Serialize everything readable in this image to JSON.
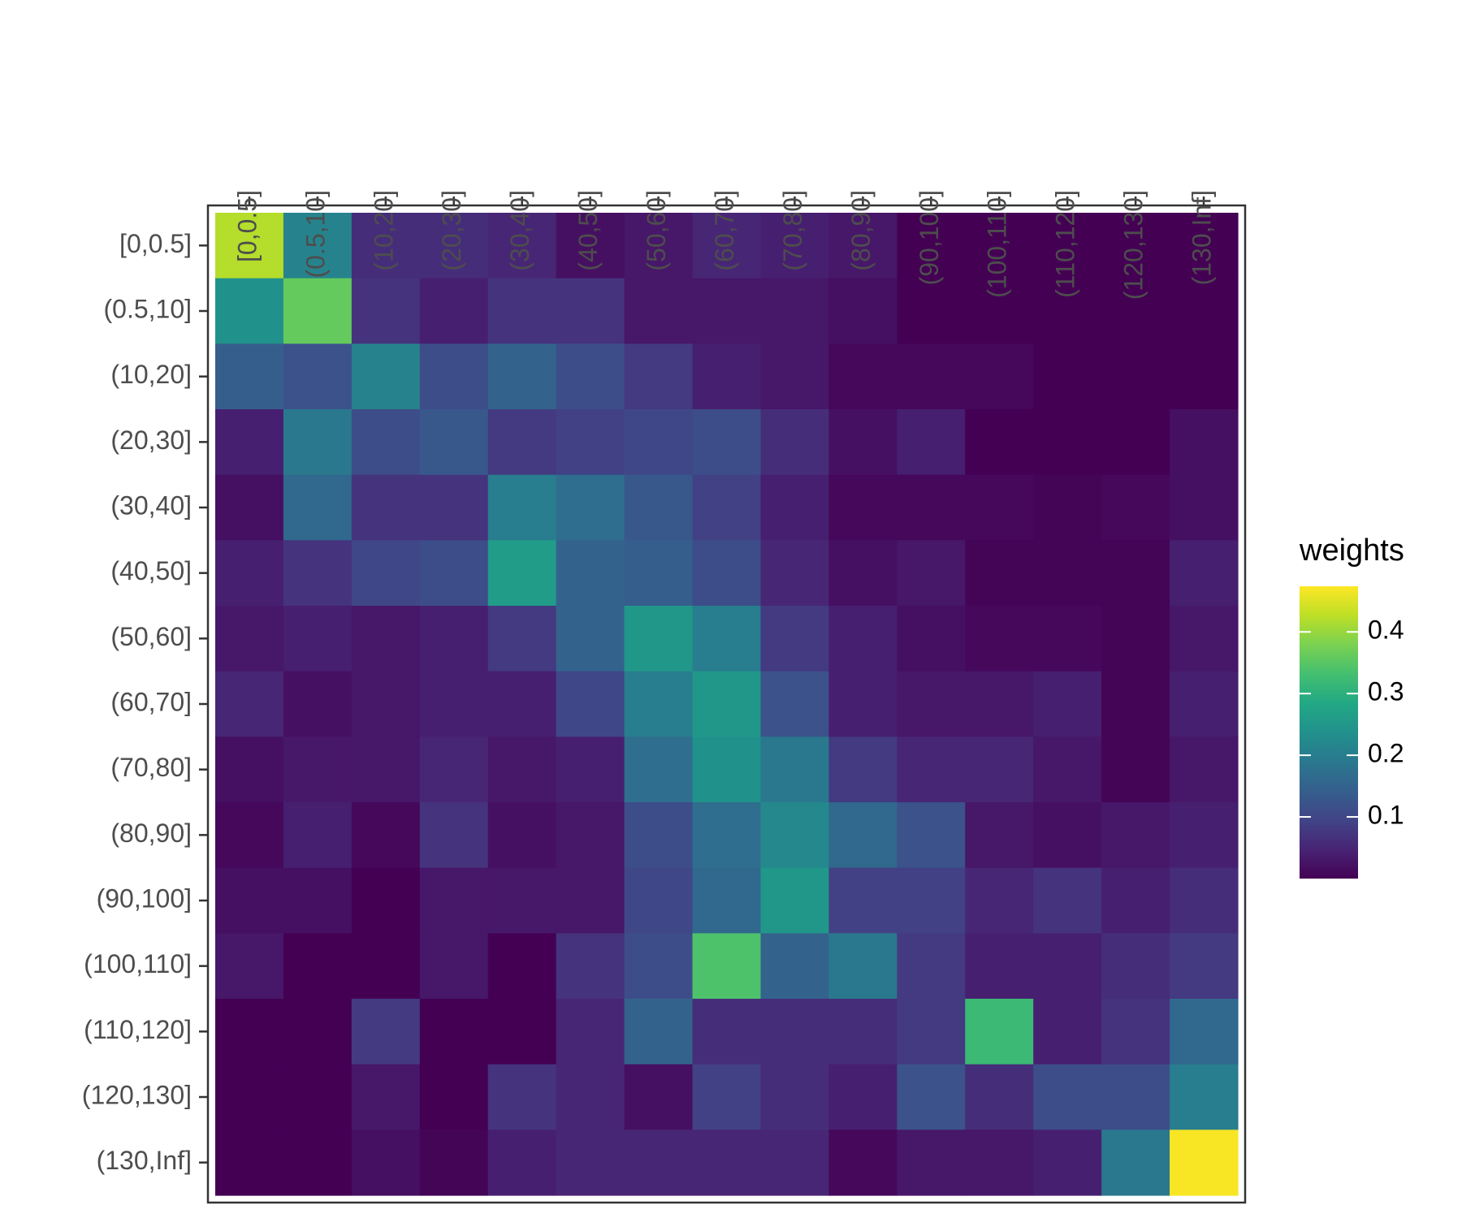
{
  "chart_data": {
    "type": "heatmap",
    "x_categories": [
      "[0,0.5]",
      "(0.5,10]",
      "(10,20]",
      "(20,30]",
      "(30,40]",
      "(40,50]",
      "(50,60]",
      "(60,70]",
      "(70,80]",
      "(80,90]",
      "(90,100]",
      "(100,110]",
      "(110,120]",
      "(120,130]",
      "(130,Inf]"
    ],
    "y_categories": [
      "[0,0.5]",
      "(0.5,10]",
      "(10,20]",
      "(20,30]",
      "(30,40]",
      "(40,50]",
      "(50,60]",
      "(60,70]",
      "(70,80]",
      "(80,90]",
      "(90,100]",
      "(100,110]",
      "(110,120]",
      "(120,130]",
      "(130,Inf]"
    ],
    "values": [
      [
        0.42,
        0.21,
        0.06,
        0.06,
        0.05,
        0.02,
        0.03,
        0.05,
        0.04,
        0.03,
        0,
        0,
        0,
        0,
        0
      ],
      [
        0.24,
        0.36,
        0.07,
        0.04,
        0.07,
        0.07,
        0.03,
        0.03,
        0.03,
        0.02,
        0,
        0,
        0,
        0,
        0
      ],
      [
        0.14,
        0.12,
        0.21,
        0.11,
        0.15,
        0.11,
        0.08,
        0.04,
        0.03,
        0.01,
        0.01,
        0.01,
        0,
        0,
        0
      ],
      [
        0.04,
        0.19,
        0.11,
        0.13,
        0.08,
        0.09,
        0.1,
        0.11,
        0.06,
        0.02,
        0.04,
        0,
        0,
        0,
        0.02
      ],
      [
        0.02,
        0.16,
        0.07,
        0.07,
        0.2,
        0.17,
        0.13,
        0.09,
        0.04,
        0.01,
        0.01,
        0.01,
        0.005,
        0.01,
        0.02
      ],
      [
        0.04,
        0.07,
        0.1,
        0.11,
        0.26,
        0.15,
        0.14,
        0.11,
        0.05,
        0.02,
        0.03,
        0.005,
        0.005,
        0.005,
        0.04
      ],
      [
        0.03,
        0.04,
        0.03,
        0.04,
        0.08,
        0.15,
        0.25,
        0.2,
        0.08,
        0.04,
        0.02,
        0.01,
        0.01,
        0.005,
        0.03
      ],
      [
        0.05,
        0.02,
        0.03,
        0.04,
        0.04,
        0.1,
        0.2,
        0.25,
        0.12,
        0.04,
        0.03,
        0.03,
        0.04,
        0.005,
        0.04
      ],
      [
        0.02,
        0.03,
        0.03,
        0.05,
        0.03,
        0.04,
        0.17,
        0.24,
        0.19,
        0.08,
        0.05,
        0.05,
        0.03,
        0.005,
        0.03
      ],
      [
        0.01,
        0.04,
        0.01,
        0.07,
        0.02,
        0.03,
        0.11,
        0.17,
        0.22,
        0.16,
        0.12,
        0.03,
        0.02,
        0.03,
        0.04
      ],
      [
        0.02,
        0.02,
        0,
        0.03,
        0.03,
        0.03,
        0.1,
        0.16,
        0.25,
        0.09,
        0.09,
        0.05,
        0.07,
        0.04,
        0.06
      ],
      [
        0.03,
        0,
        0,
        0.03,
        0,
        0.07,
        0.11,
        0.34,
        0.15,
        0.19,
        0.08,
        0.04,
        0.04,
        0.06,
        0.08
      ],
      [
        0,
        0,
        0.08,
        0,
        0,
        0.05,
        0.15,
        0.06,
        0.06,
        0.06,
        0.08,
        0.32,
        0.04,
        0.07,
        0.16
      ],
      [
        0,
        0,
        0.03,
        0,
        0.07,
        0.05,
        0.02,
        0.09,
        0.06,
        0.04,
        0.12,
        0.06,
        0.11,
        0.11,
        0.2
      ],
      [
        0,
        0,
        0.02,
        0.005,
        0.04,
        0.05,
        0.05,
        0.05,
        0.05,
        0.01,
        0.03,
        0.03,
        0.04,
        0.19,
        0.47
      ]
    ],
    "legend_title": "weights",
    "colormap": "viridis",
    "clim": [
      0,
      0.474
    ],
    "colorticks": [
      0.1,
      0.2,
      0.3,
      0.4
    ]
  }
}
